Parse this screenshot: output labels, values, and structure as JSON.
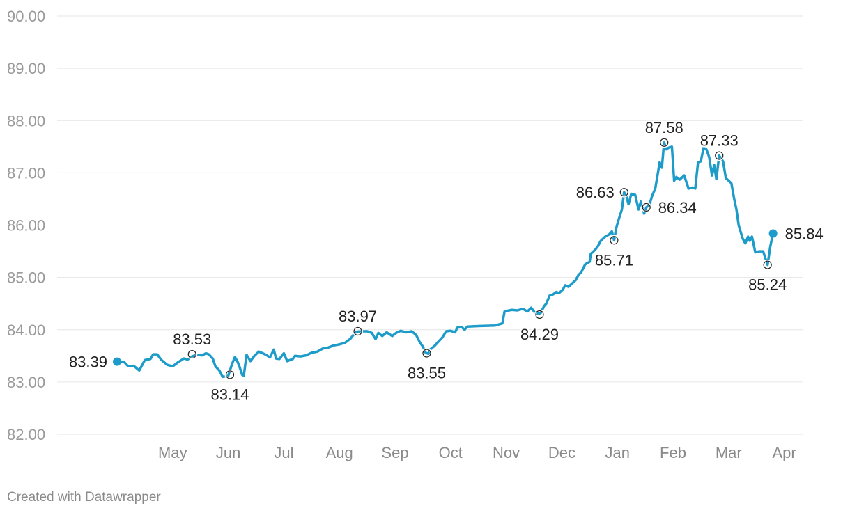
{
  "chart_data": {
    "type": "line",
    "title": "",
    "xlabel": "",
    "ylabel": "",
    "ylim": [
      82,
      90
    ],
    "yticks": [
      "82.00",
      "83.00",
      "84.00",
      "85.00",
      "86.00",
      "87.00",
      "88.00",
      "89.00",
      "90.00"
    ],
    "xlim": [
      0,
      12.5
    ],
    "xticks": [
      {
        "label": "May",
        "x": 1
      },
      {
        "label": "Jun",
        "x": 2
      },
      {
        "label": "Jul",
        "x": 3
      },
      {
        "label": "Aug",
        "x": 4
      },
      {
        "label": "Sep",
        "x": 5
      },
      {
        "label": "Oct",
        "x": 6
      },
      {
        "label": "Nov",
        "x": 7
      },
      {
        "label": "Dec",
        "x": 8
      },
      {
        "label": "Jan",
        "x": 9
      },
      {
        "label": "Feb",
        "x": 10
      },
      {
        "label": "Mar",
        "x": 11
      },
      {
        "label": "Apr",
        "x": 12
      }
    ],
    "color": "#1d9bc9",
    "series": [
      {
        "name": "value",
        "points": [
          [
            0.0,
            83.39
          ],
          [
            0.12,
            83.39
          ],
          [
            0.2,
            83.3
          ],
          [
            0.3,
            83.31
          ],
          [
            0.4,
            83.22
          ],
          [
            0.5,
            83.42
          ],
          [
            0.6,
            83.44
          ],
          [
            0.65,
            83.53
          ],
          [
            0.72,
            83.53
          ],
          [
            0.8,
            83.42
          ],
          [
            0.9,
            83.33
          ],
          [
            1.0,
            83.3
          ],
          [
            1.1,
            83.38
          ],
          [
            1.2,
            83.45
          ],
          [
            1.27,
            83.43
          ],
          [
            1.33,
            83.48
          ],
          [
            1.43,
            83.52
          ],
          [
            1.53,
            83.51
          ],
          [
            1.6,
            83.55
          ],
          [
            1.65,
            83.53
          ],
          [
            1.72,
            83.45
          ],
          [
            1.77,
            83.3
          ],
          [
            1.84,
            83.22
          ],
          [
            1.9,
            83.1
          ],
          [
            2.0,
            83.12
          ],
          [
            2.07,
            83.35
          ],
          [
            2.12,
            83.48
          ],
          [
            2.17,
            83.38
          ],
          [
            2.2,
            83.3
          ],
          [
            2.25,
            83.14
          ],
          [
            2.28,
            83.12
          ],
          [
            2.33,
            83.52
          ],
          [
            2.4,
            83.4
          ],
          [
            2.47,
            83.5
          ],
          [
            2.55,
            83.58
          ],
          [
            2.62,
            83.55
          ],
          [
            2.68,
            83.52
          ],
          [
            2.75,
            83.47
          ],
          [
            2.82,
            83.62
          ],
          [
            2.86,
            83.45
          ],
          [
            2.92,
            83.44
          ],
          [
            3.0,
            83.55
          ],
          [
            3.06,
            83.4
          ],
          [
            3.16,
            83.44
          ],
          [
            3.2,
            83.5
          ],
          [
            3.3,
            83.49
          ],
          [
            3.4,
            83.51
          ],
          [
            3.5,
            83.56
          ],
          [
            3.6,
            83.58
          ],
          [
            3.7,
            83.64
          ],
          [
            3.8,
            83.66
          ],
          [
            3.9,
            83.7
          ],
          [
            4.0,
            83.72
          ],
          [
            4.1,
            83.75
          ],
          [
            4.2,
            83.83
          ],
          [
            4.25,
            83.9
          ],
          [
            4.3,
            83.96
          ],
          [
            4.4,
            83.97
          ],
          [
            4.5,
            83.97
          ],
          [
            4.58,
            83.94
          ],
          [
            4.65,
            83.82
          ],
          [
            4.7,
            83.94
          ],
          [
            4.77,
            83.88
          ],
          [
            4.85,
            83.95
          ],
          [
            4.95,
            83.88
          ],
          [
            5.02,
            83.94
          ],
          [
            5.1,
            83.98
          ],
          [
            5.2,
            83.95
          ],
          [
            5.3,
            83.97
          ],
          [
            5.38,
            83.9
          ],
          [
            5.45,
            83.75
          ],
          [
            5.5,
            83.68
          ],
          [
            5.55,
            83.56
          ],
          [
            5.6,
            83.54
          ],
          [
            5.63,
            83.62
          ],
          [
            5.7,
            83.68
          ],
          [
            5.78,
            83.77
          ],
          [
            5.85,
            83.85
          ],
          [
            5.92,
            83.97
          ],
          [
            6.0,
            83.98
          ],
          [
            6.08,
            83.95
          ],
          [
            6.12,
            84.04
          ],
          [
            6.2,
            84.05
          ],
          [
            6.25,
            84.0
          ],
          [
            6.3,
            84.06
          ],
          [
            6.5,
            84.07
          ],
          [
            6.8,
            84.08
          ],
          [
            6.93,
            84.12
          ],
          [
            6.97,
            84.35
          ],
          [
            7.1,
            84.38
          ],
          [
            7.2,
            84.37
          ],
          [
            7.3,
            84.4
          ],
          [
            7.38,
            84.35
          ],
          [
            7.45,
            84.42
          ],
          [
            7.52,
            84.32
          ],
          [
            7.57,
            84.3
          ],
          [
            7.62,
            84.32
          ],
          [
            7.68,
            84.45
          ],
          [
            7.72,
            84.5
          ],
          [
            7.78,
            84.65
          ],
          [
            7.85,
            84.68
          ],
          [
            7.9,
            84.72
          ],
          [
            7.95,
            84.7
          ],
          [
            8.02,
            84.77
          ],
          [
            8.06,
            84.85
          ],
          [
            8.12,
            84.82
          ],
          [
            8.18,
            84.88
          ],
          [
            8.25,
            84.95
          ],
          [
            8.3,
            85.05
          ],
          [
            8.35,
            85.1
          ],
          [
            8.42,
            85.25
          ],
          [
            8.5,
            85.3
          ],
          [
            8.52,
            85.45
          ],
          [
            8.6,
            85.53
          ],
          [
            8.65,
            85.6
          ],
          [
            8.7,
            85.7
          ],
          [
            8.78,
            85.78
          ],
          [
            8.85,
            85.82
          ],
          [
            8.9,
            85.88
          ],
          [
            8.94,
            85.71
          ],
          [
            8.98,
            85.95
          ],
          [
            9.02,
            86.1
          ],
          [
            9.08,
            86.3
          ],
          [
            9.12,
            86.63
          ],
          [
            9.16,
            86.55
          ],
          [
            9.2,
            86.4
          ],
          [
            9.25,
            86.6
          ],
          [
            9.32,
            86.58
          ],
          [
            9.38,
            86.3
          ],
          [
            9.42,
            86.45
          ],
          [
            9.48,
            86.22
          ],
          [
            9.52,
            86.34
          ],
          [
            9.58,
            86.4
          ],
          [
            9.62,
            86.55
          ],
          [
            9.68,
            86.7
          ],
          [
            9.72,
            86.95
          ],
          [
            9.76,
            87.2
          ],
          [
            9.8,
            87.1
          ],
          [
            9.84,
            87.58
          ],
          [
            9.88,
            87.45
          ],
          [
            9.92,
            87.48
          ],
          [
            9.98,
            87.5
          ],
          [
            10.02,
            86.85
          ],
          [
            10.06,
            86.92
          ],
          [
            10.12,
            86.87
          ],
          [
            10.2,
            86.95
          ],
          [
            10.28,
            86.7
          ],
          [
            10.35,
            86.72
          ],
          [
            10.4,
            86.7
          ],
          [
            10.45,
            87.2
          ],
          [
            10.5,
            87.22
          ],
          [
            10.55,
            87.48
          ],
          [
            10.6,
            87.45
          ],
          [
            10.65,
            87.3
          ],
          [
            10.7,
            86.95
          ],
          [
            10.74,
            87.15
          ],
          [
            10.78,
            86.88
          ],
          [
            10.83,
            87.33
          ],
          [
            10.9,
            87.22
          ],
          [
            10.95,
            86.9
          ],
          [
            11.05,
            86.8
          ],
          [
            11.1,
            86.5
          ],
          [
            11.14,
            86.3
          ],
          [
            11.18,
            86.0
          ],
          [
            11.25,
            85.75
          ],
          [
            11.3,
            85.65
          ],
          [
            11.35,
            85.78
          ],
          [
            11.38,
            85.7
          ],
          [
            11.42,
            85.78
          ],
          [
            11.48,
            85.48
          ],
          [
            11.55,
            85.5
          ],
          [
            11.62,
            85.5
          ],
          [
            11.7,
            85.24
          ],
          [
            11.75,
            85.6
          ],
          [
            11.8,
            85.84
          ]
        ]
      }
    ],
    "annotations": [
      {
        "x": 0.0,
        "y": 83.39,
        "label": "83.39",
        "pos": "left",
        "style": "dot"
      },
      {
        "x": 1.35,
        "y": 83.53,
        "label": "83.53",
        "pos": "above",
        "style": "circle"
      },
      {
        "x": 2.03,
        "y": 83.14,
        "label": "83.14",
        "pos": "below",
        "style": "circle"
      },
      {
        "x": 4.33,
        "y": 83.97,
        "label": "83.97",
        "pos": "above",
        "style": "circle"
      },
      {
        "x": 5.57,
        "y": 83.55,
        "label": "83.55",
        "pos": "below",
        "style": "circle"
      },
      {
        "x": 7.6,
        "y": 84.29,
        "label": "84.29",
        "pos": "below",
        "style": "circle"
      },
      {
        "x": 8.94,
        "y": 85.71,
        "label": "85.71",
        "pos": "below",
        "style": "circle"
      },
      {
        "x": 9.12,
        "y": 86.63,
        "label": "86.63",
        "pos": "left",
        "style": "circle"
      },
      {
        "x": 9.52,
        "y": 86.34,
        "label": "86.34",
        "pos": "right",
        "style": "circle"
      },
      {
        "x": 9.84,
        "y": 87.58,
        "label": "87.58",
        "pos": "above",
        "style": "circle"
      },
      {
        "x": 10.83,
        "y": 87.33,
        "label": "87.33",
        "pos": "above",
        "style": "circle"
      },
      {
        "x": 11.7,
        "y": 85.24,
        "label": "85.24",
        "pos": "below",
        "style": "circle"
      },
      {
        "x": 11.8,
        "y": 85.84,
        "label": "85.84",
        "pos": "right",
        "style": "dot"
      }
    ]
  },
  "footer": {
    "credit": "Created with Datawrapper"
  }
}
